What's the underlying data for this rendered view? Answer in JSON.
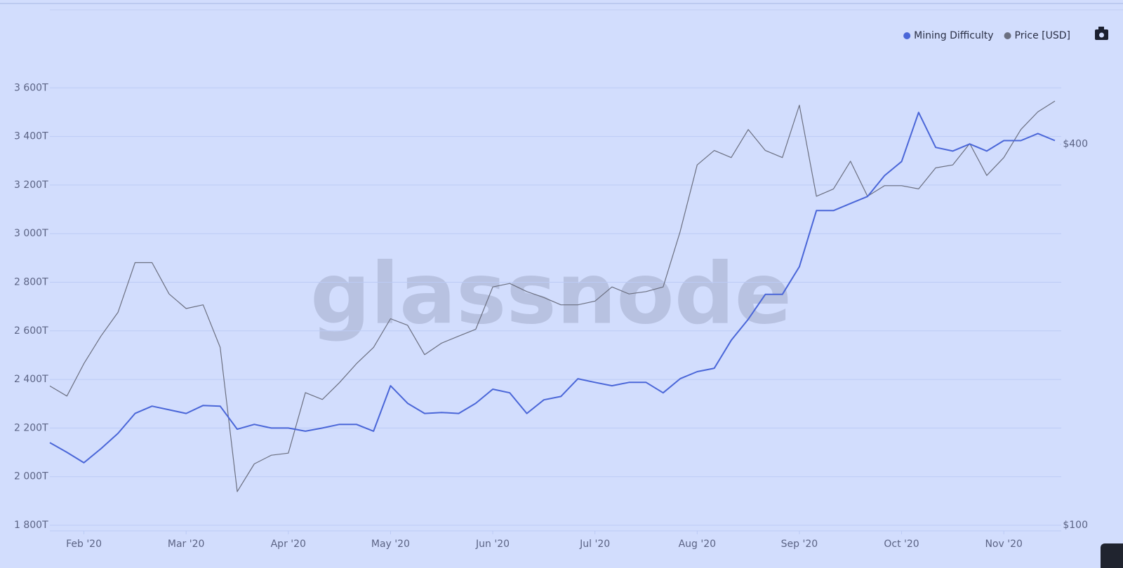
{
  "chart_data": {
    "type": "line",
    "watermark": "glassnode",
    "categories": [
      null,
      null,
      "Feb '20",
      null,
      null,
      null,
      null,
      null,
      "Mar '20",
      null,
      null,
      null,
      null,
      null,
      "Apr '20",
      null,
      null,
      null,
      null,
      null,
      "May '20",
      null,
      null,
      null,
      null,
      null,
      "Jun '20",
      null,
      null,
      null,
      null,
      null,
      "Jul '20",
      null,
      null,
      null,
      null,
      null,
      "Aug '20",
      null,
      null,
      null,
      null,
      null,
      "Sep '20",
      null,
      null,
      null,
      null,
      null,
      "Oct '20",
      null,
      null,
      null,
      null,
      null,
      "Nov '20",
      null,
      null,
      null
    ],
    "series": [
      {
        "name": "Mining Difficulty",
        "color": "#4a66d8",
        "values": [
          2140,
          2100,
          2057,
          2115,
          2178,
          2260,
          2290,
          2275,
          2260,
          2293,
          2290,
          2195,
          2215,
          2200,
          2200,
          2187,
          2200,
          2215,
          2215,
          2187,
          2374,
          2302,
          2260,
          2264,
          2260,
          2302,
          2360,
          2345,
          2260,
          2316,
          2330,
          2403,
          2388,
          2374,
          2388,
          2388,
          2345,
          2403,
          2432,
          2446,
          2561,
          2648,
          2750,
          2750,
          2864,
          3095,
          3095,
          3124,
          3153,
          3239,
          3297,
          3499,
          3355,
          3340,
          3369,
          3340,
          3383,
          3383,
          3412,
          3383
        ]
      },
      {
        "name": "Price [USD]",
        "color": "#6b6f80",
        "axis": "y2",
        "values": [
          166,
          160,
          180,
          199,
          217,
          260,
          260,
          232,
          220,
          223,
          191,
          113,
          125,
          129,
          130,
          162,
          158,
          168,
          180,
          191,
          212,
          207,
          186,
          194,
          199,
          204,
          238,
          241,
          234,
          229,
          223,
          223,
          226,
          238,
          232,
          234,
          238,
          291,
          371,
          391,
          381,
          422,
          391,
          381,
          461,
          331,
          340,
          376,
          331,
          344,
          344,
          340,
          367,
          371,
          401,
          357,
          381,
          422,
          450,
          468
        ]
      }
    ],
    "ylim": [
      1800,
      3800
    ],
    "yticks": [
      {
        "value": 1800,
        "label": "1 800T"
      },
      {
        "value": 2000,
        "label": "2 000T"
      },
      {
        "value": 2200,
        "label": "2 200T"
      },
      {
        "value": 2400,
        "label": "2 400T"
      },
      {
        "value": 2600,
        "label": "2 600T"
      },
      {
        "value": 2800,
        "label": "2 800T"
      },
      {
        "value": 3000,
        "label": "3 000T"
      },
      {
        "value": 3200,
        "label": "3 200T"
      },
      {
        "value": 3400,
        "label": "3 400T"
      },
      {
        "value": 3600,
        "label": "3 600T"
      }
    ],
    "y2lim": [
      100,
      586
    ],
    "y2ticks": [
      {
        "value": 100,
        "label": "$100"
      },
      {
        "value": 400,
        "label": "$400"
      }
    ],
    "y2scale": "log",
    "grid": true,
    "legend": "top-right"
  }
}
